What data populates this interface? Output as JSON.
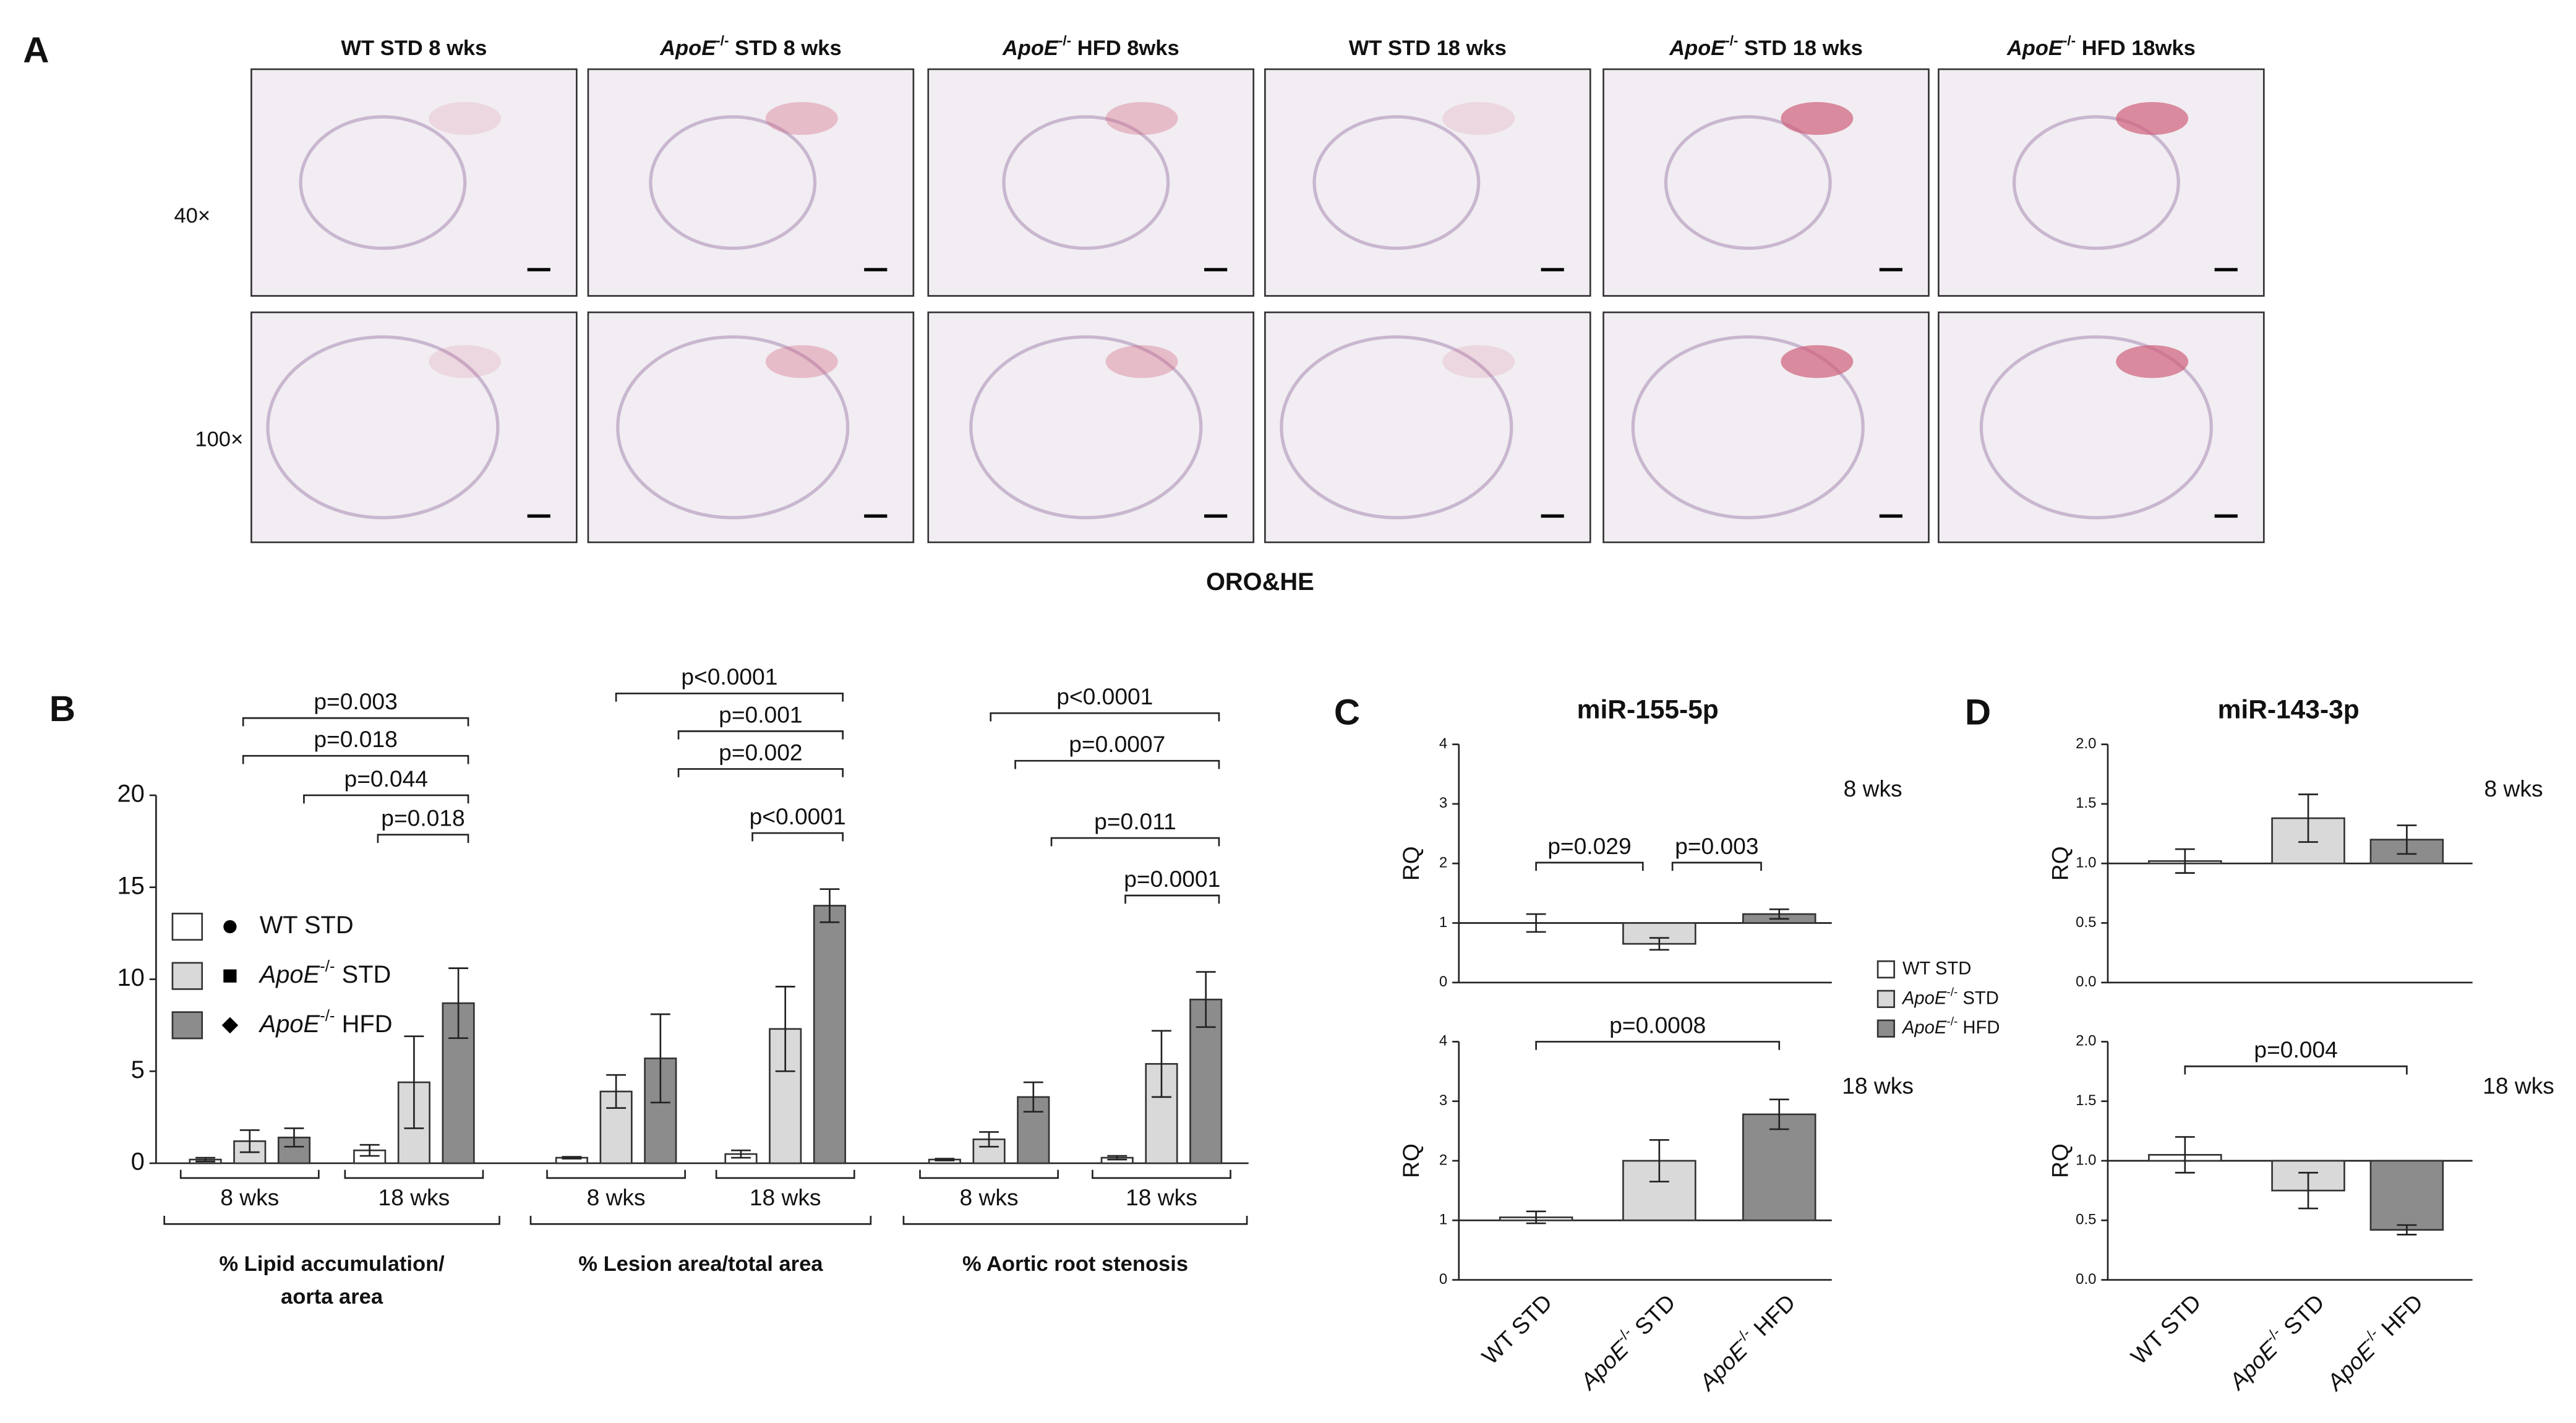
{
  "panels": [
    "A",
    "B",
    "C",
    "D"
  ],
  "histology": {
    "columns": [
      "WT STD 8 wks",
      "ApoE-/- STD 8 wks",
      "ApoE-/- HFD 8wks",
      "WT STD 18 wks",
      "ApoE-/- STD 18 wks",
      "ApoE-/- HFD 18wks"
    ],
    "rows": [
      "40×",
      "100×"
    ],
    "stain": "ORO&HE"
  },
  "chart_data": [
    {
      "type": "grouped-bar",
      "categories": [
        "8 wks",
        "18 wks",
        "8 wks",
        "18 wks",
        "8 wks",
        "18 wks"
      ],
      "groups": [
        [
          "% Lipid accumulation/",
          "aorta area"
        ],
        [
          "% Lesion area/total area"
        ],
        [
          "% Aortic root stenosis"
        ]
      ],
      "series": [
        {
          "name": "WT STD",
          "color": "#ffffff",
          "values": [
            0.2,
            0.7,
            0.3,
            0.5,
            0.2,
            0.3
          ],
          "errors": [
            0.1,
            0.3,
            0.05,
            0.2,
            0.05,
            0.1
          ]
        },
        {
          "name": "ApoE-/- STD",
          "color": "#d9d9d9",
          "values": [
            1.2,
            4.4,
            3.9,
            7.3,
            1.3,
            5.4
          ],
          "errors": [
            0.6,
            2.5,
            0.9,
            2.3,
            0.4,
            1.8
          ]
        },
        {
          "name": "ApoE-/- HFD",
          "color": "#8c8c8c",
          "values": [
            1.4,
            8.7,
            5.7,
            14.0,
            3.6,
            8.9
          ],
          "errors": [
            0.5,
            1.9,
            2.4,
            0.9,
            0.8,
            1.5
          ]
        }
      ],
      "ylim": [
        0,
        20
      ],
      "yticks": [
        0,
        5,
        10,
        15,
        20
      ],
      "legend": "left",
      "annotations": [
        "p=0.003",
        "p=0.018",
        "p=0.044",
        "p=0.018",
        "p<0.0001",
        "p=0.001",
        "p=0.002",
        "p<0.0001",
        "p<0.0001",
        "p=0.0007",
        "p=0.011",
        "p=0.0001"
      ]
    },
    {
      "type": "bar",
      "title": "miR-155-5p",
      "subtitle": "8 wks",
      "ylabel": "RQ",
      "categories": [
        "WT STD",
        "ApoE-/- STD",
        "ApoE-/- HFD"
      ],
      "colors": [
        "#ffffff",
        "#d9d9d9",
        "#8c8c8c"
      ],
      "values": [
        1.0,
        0.65,
        1.15
      ],
      "errors": [
        0.15,
        0.1,
        0.08
      ],
      "baseline": 1,
      "ylim": [
        0,
        4
      ],
      "yticks": [
        0,
        1,
        2,
        3,
        4
      ],
      "legend": "right",
      "annotations": [
        "p=0.029",
        "p=0.003"
      ]
    },
    {
      "type": "bar",
      "subtitle": "18 wks",
      "ylabel": "RQ",
      "categories": [
        "WT STD",
        "ApoE-/- STD",
        "ApoE-/- HFD"
      ],
      "colors": [
        "#ffffff",
        "#d9d9d9",
        "#8c8c8c"
      ],
      "values": [
        1.05,
        2.0,
        2.78
      ],
      "errors": [
        0.1,
        0.35,
        0.25
      ],
      "baseline": 1,
      "ylim": [
        0,
        4
      ],
      "yticks": [
        0,
        1,
        2,
        3,
        4
      ],
      "annotations": [
        "p=0.0008"
      ],
      "xlabels": true
    },
    {
      "type": "bar",
      "title": "miR-143-3p",
      "subtitle": "8 wks",
      "ylabel": "RQ",
      "categories": [
        "WT STD",
        "ApoE-/- STD",
        "ApoE-/- HFD"
      ],
      "colors": [
        "#ffffff",
        "#d9d9d9",
        "#8c8c8c"
      ],
      "values": [
        1.02,
        1.38,
        1.2
      ],
      "errors": [
        0.1,
        0.2,
        0.12
      ],
      "baseline": 1,
      "ylim": [
        0,
        2
      ],
      "yticks": [
        {
          "value": 0,
          "label": "0.0"
        },
        0.5,
        {
          "value": 1,
          "label": "1.0"
        },
        1.5,
        {
          "value": 2,
          "label": "2.0"
        }
      ]
    },
    {
      "type": "bar",
      "subtitle": "18 wks",
      "ylabel": "RQ",
      "categories": [
        "WT STD",
        "ApoE-/- STD",
        "ApoE-/- HFD"
      ],
      "colors": [
        "#ffffff",
        "#d9d9d9",
        "#8c8c8c"
      ],
      "values": [
        1.05,
        0.75,
        0.42
      ],
      "errors": [
        0.15,
        0.15,
        0.04
      ],
      "baseline": 1,
      "ylim": [
        0,
        2
      ],
      "yticks": [
        {
          "value": 0,
          "label": "0.0"
        },
        0.5,
        {
          "value": 1,
          "label": "1.0"
        },
        1.5,
        {
          "value": 2,
          "label": "2.0"
        }
      ],
      "annotations": [
        "p=0.004"
      ],
      "xlabels": true
    }
  ]
}
